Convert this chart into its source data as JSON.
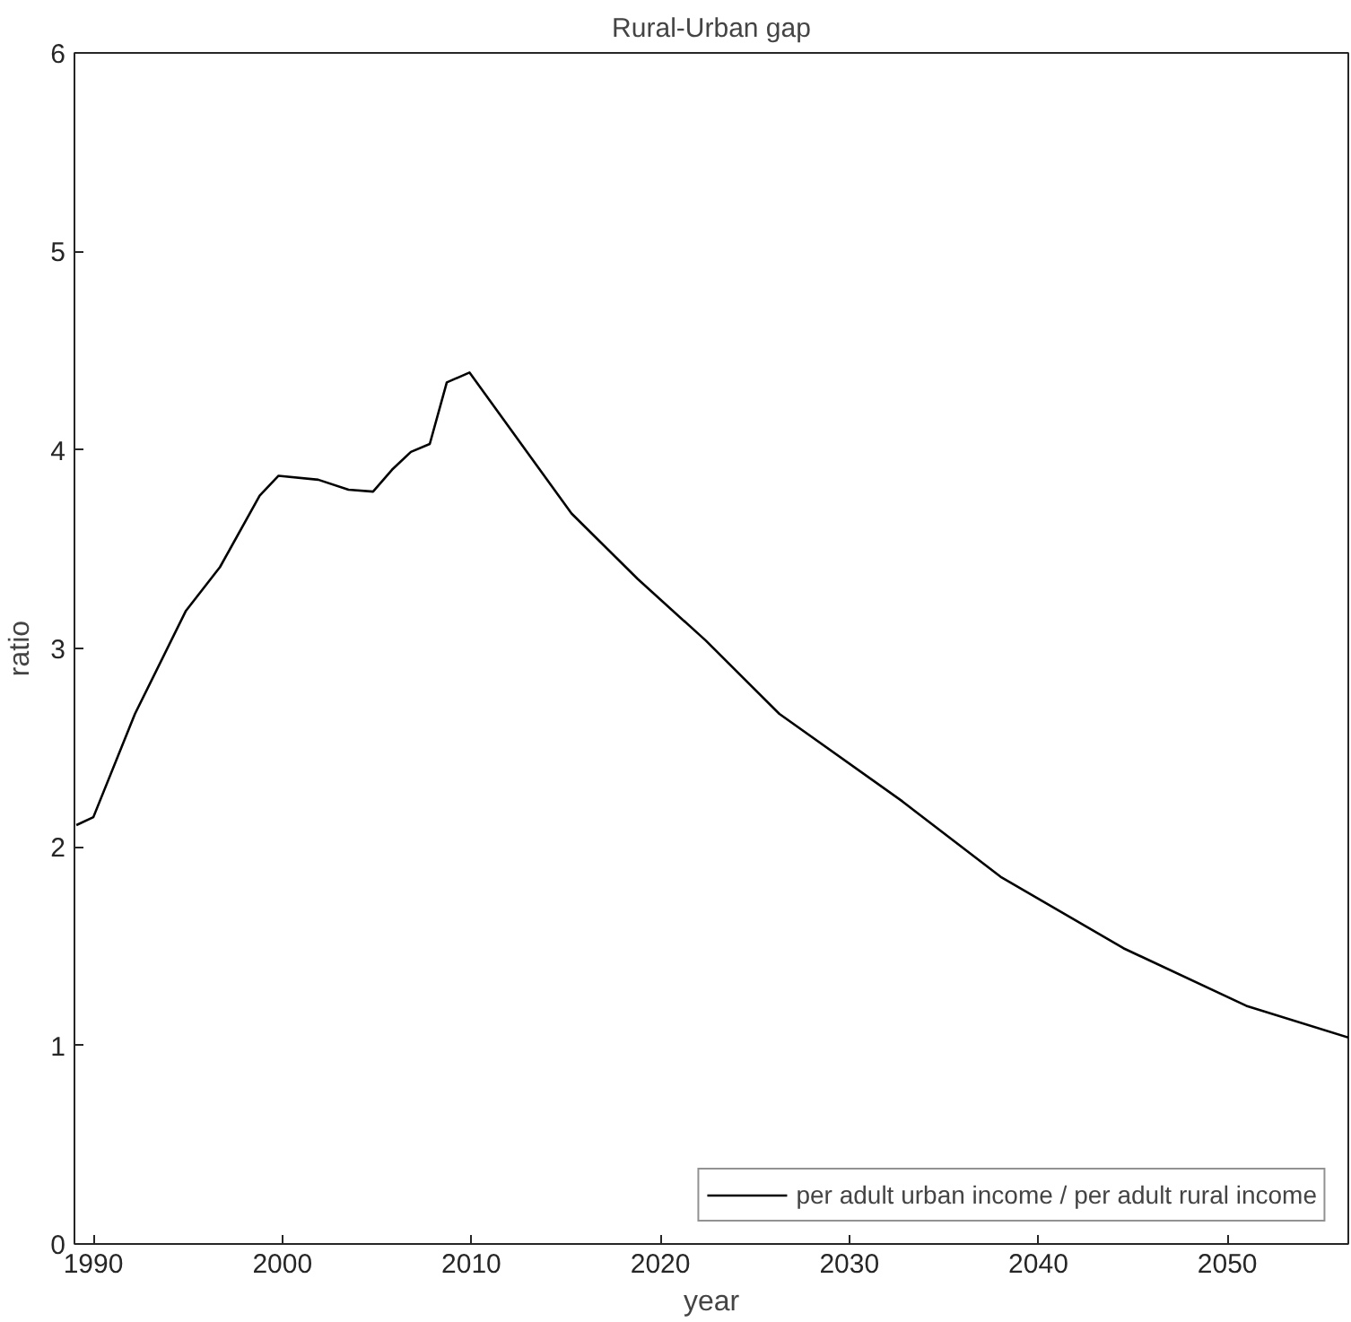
{
  "chart_data": {
    "type": "line",
    "title": "Rural-Urban gap",
    "xlabel": "year",
    "ylabel": "ratio",
    "xlim": [
      1989,
      2056.4
    ],
    "ylim": [
      0,
      6
    ],
    "xticks": [
      1990,
      2000,
      2010,
      2020,
      2030,
      2040,
      2050
    ],
    "yticks": [
      0,
      1,
      2,
      3,
      4,
      5,
      6
    ],
    "grid": false,
    "legend": "bottom right",
    "marker": "none",
    "line_style": "solid",
    "series": [
      {
        "name": "per adult urban income / per adult rural income",
        "color": "#000000",
        "x": [
          1989.1,
          1990.0,
          1992.2,
          1994.9,
          1996.7,
          1998.8,
          1999.8,
          2001.9,
          2003.5,
          2004.8,
          2005.8,
          2006.8,
          2007.8,
          2008.7,
          2009.9,
          2015.3,
          2018.8,
          2022.4,
          2026.3,
          2032.8,
          2038.0,
          2044.5,
          2051.0,
          2056.4
        ],
        "values": [
          2.11,
          2.15,
          2.67,
          3.19,
          3.41,
          3.77,
          3.87,
          3.85,
          3.8,
          3.79,
          3.9,
          3.99,
          4.03,
          4.34,
          4.39,
          3.68,
          3.35,
          3.04,
          2.67,
          2.23,
          1.85,
          1.49,
          1.2,
          1.04
        ]
      }
    ]
  }
}
